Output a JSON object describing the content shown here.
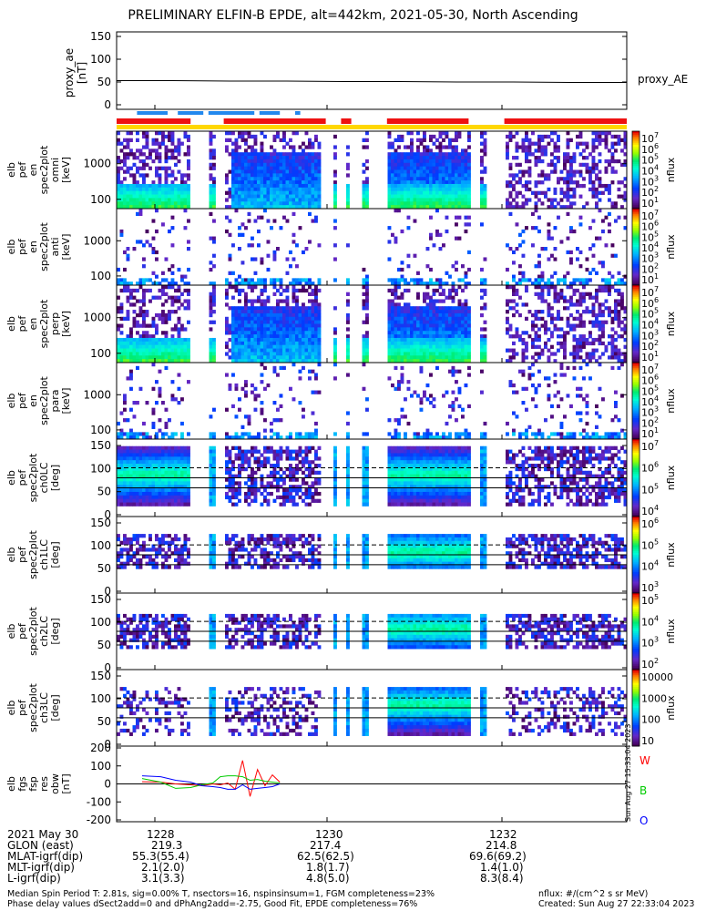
{
  "title": "PRELIMINARY ELFIN-B EPDE, alt=442km, 2021-05-30, North Ascending",
  "stamp": "Sun Aug 27 15:33:04 2023",
  "chart_data": {
    "type": "heatmap",
    "panels": [
      {
        "ylabel": [
          "proxy_ae",
          "[nT]"
        ],
        "yticks": [
          "150",
          "100",
          "50",
          "0"
        ],
        "ylim": [
          0,
          150
        ],
        "right_label": "proxy_AE",
        "proxy_ae_values": [
          53,
          53,
          52,
          52,
          51,
          51,
          50,
          50,
          49,
          49
        ]
      },
      {
        "ylabel": [
          "elb",
          "pef",
          "en",
          "spec2plot",
          "omni",
          "[keV]"
        ],
        "yticks": [
          "1000",
          "100"
        ],
        "colorbar_ticks": [
          "10^7",
          "10^6",
          "10^5",
          "10^4",
          "10^3",
          "10^2",
          "10^1"
        ],
        "colorbar_label": "nflux"
      },
      {
        "ylabel": [
          "elb",
          "pef",
          "en",
          "spec2plot",
          "anti",
          "[keV]"
        ],
        "yticks": [
          "1000",
          "100"
        ],
        "colorbar_ticks": [
          "10^7",
          "10^6",
          "10^5",
          "10^4",
          "10^3",
          "10^2",
          "10^1"
        ],
        "colorbar_label": "nflux"
      },
      {
        "ylabel": [
          "elb",
          "pef",
          "en",
          "spec2plot",
          "perp",
          "[keV]"
        ],
        "yticks": [
          "1000",
          "100"
        ],
        "colorbar_ticks": [
          "10^7",
          "10^6",
          "10^5",
          "10^4",
          "10^3",
          "10^2",
          "10^1"
        ],
        "colorbar_label": "nflux"
      },
      {
        "ylabel": [
          "elb",
          "pef",
          "en",
          "spec2plot",
          "para",
          "[keV]"
        ],
        "yticks": [
          "1000",
          "100"
        ],
        "colorbar_ticks": [
          "10^7",
          "10^6",
          "10^5",
          "10^4",
          "10^3",
          "10^2",
          "10^1"
        ],
        "colorbar_label": "nflux"
      },
      {
        "ylabel": [
          "elb",
          "pef",
          "spec2plot",
          "ch0LC",
          "[deg]"
        ],
        "yticks": [
          "150",
          "100",
          "50",
          "0"
        ],
        "colorbar_ticks": [
          "10^7",
          "10^6",
          "10^5",
          "10^4"
        ],
        "colorbar_label": "nflux"
      },
      {
        "ylabel": [
          "elb",
          "pef",
          "spec2plot",
          "ch1LC",
          "[deg]"
        ],
        "yticks": [
          "150",
          "100",
          "50",
          "0"
        ],
        "colorbar_ticks": [
          "10^6",
          "10^5",
          "10^4",
          "10^3"
        ],
        "colorbar_label": "nflux"
      },
      {
        "ylabel": [
          "elb",
          "pef",
          "spec2plot",
          "ch2LC",
          "[deg]"
        ],
        "yticks": [
          "150",
          "100",
          "50",
          "0"
        ],
        "colorbar_ticks": [
          "10^5",
          "10^4",
          "10^3",
          "10^2"
        ],
        "colorbar_label": "nflux"
      },
      {
        "ylabel": [
          "elb",
          "pef",
          "spec2plot",
          "ch3LC",
          "[deg]"
        ],
        "yticks": [
          "150",
          "100",
          "50",
          "0"
        ],
        "colorbar_ticks": [
          "10000",
          "1000",
          "100",
          "10"
        ],
        "colorbar_label": "nflux"
      },
      {
        "ylabel": [
          "elb",
          "fgs",
          "fsp",
          "res",
          "obw",
          "[nT]"
        ],
        "yticks": [
          "200",
          "100",
          "0",
          "-100",
          "-200"
        ],
        "ylim": [
          -200,
          200
        ],
        "legend": [
          {
            "name": "W",
            "color": "#ff0000"
          },
          {
            "name": "B",
            "color": "#00cc00"
          },
          {
            "name": "O",
            "color": "#0000ff"
          }
        ],
        "series": [
          {
            "name": "W",
            "color": "#ff0000",
            "x": [
              0.0,
              0.1,
              0.18,
              0.26,
              0.32,
              0.38,
              0.42,
              0.46,
              0.5,
              0.54,
              0.58,
              0.62,
              0.66,
              0.7,
              0.74
            ],
            "y": [
              12,
              10,
              0,
              -5,
              -10,
              0,
              -5,
              5,
              -30,
              130,
              -70,
              80,
              -10,
              50,
              10
            ]
          },
          {
            "name": "B",
            "color": "#00cc00",
            "x": [
              0.0,
              0.1,
              0.18,
              0.26,
              0.32,
              0.38,
              0.42,
              0.46,
              0.5,
              0.54,
              0.58,
              0.62,
              0.66,
              0.7,
              0.74
            ],
            "y": [
              30,
              10,
              -25,
              -20,
              -5,
              5,
              40,
              45,
              45,
              40,
              20,
              25,
              15,
              10,
              5
            ]
          },
          {
            "name": "O",
            "color": "#0000ff",
            "x": [
              0.0,
              0.1,
              0.18,
              0.26,
              0.32,
              0.38,
              0.42,
              0.46,
              0.5,
              0.54,
              0.58,
              0.62,
              0.66,
              0.7,
              0.74
            ],
            "y": [
              45,
              40,
              20,
              10,
              -10,
              -15,
              -20,
              -30,
              -30,
              -5,
              -30,
              -25,
              -20,
              -15,
              0
            ]
          }
        ]
      }
    ],
    "xticks": [
      "1228",
      "1230",
      "1232"
    ]
  },
  "bottom_rows": [
    {
      "label": "2021 May 30",
      "vals": [
        "1228",
        "1230",
        "1232"
      ]
    },
    {
      "label": "GLON (east)",
      "vals": [
        "219.3",
        "217.4",
        "214.8"
      ]
    },
    {
      "label": "MLAT-igrf(dip)",
      "vals": [
        "55.3(55.4)",
        "62.5(62.5)",
        "69.6(69.2)"
      ]
    },
    {
      "label": "MLT-igrf(dip)",
      "vals": [
        "2.1(2.0)",
        "1.8(1.7)",
        "1.4(1.0)"
      ]
    },
    {
      "label": "L-igrf(dip)",
      "vals": [
        "3.1(3.3)",
        "4.8(5.0)",
        "8.3(8.4)"
      ]
    }
  ],
  "footer_left_1": "Median Spin Period T: 2.81s, sig=0.00% T, nsectors=16, nspinsinsum=1, FGM completeness=23%",
  "footer_left_2": "Phase delay values dSect2add=0 and dPhAng2add=-2.75, Good Fit, EPDE completeness=76%",
  "footer_right_1": "nflux: #/(cm^2 s sr MeV)",
  "footer_right_2": "Created: Sun Aug 27 22:33:04 2023"
}
